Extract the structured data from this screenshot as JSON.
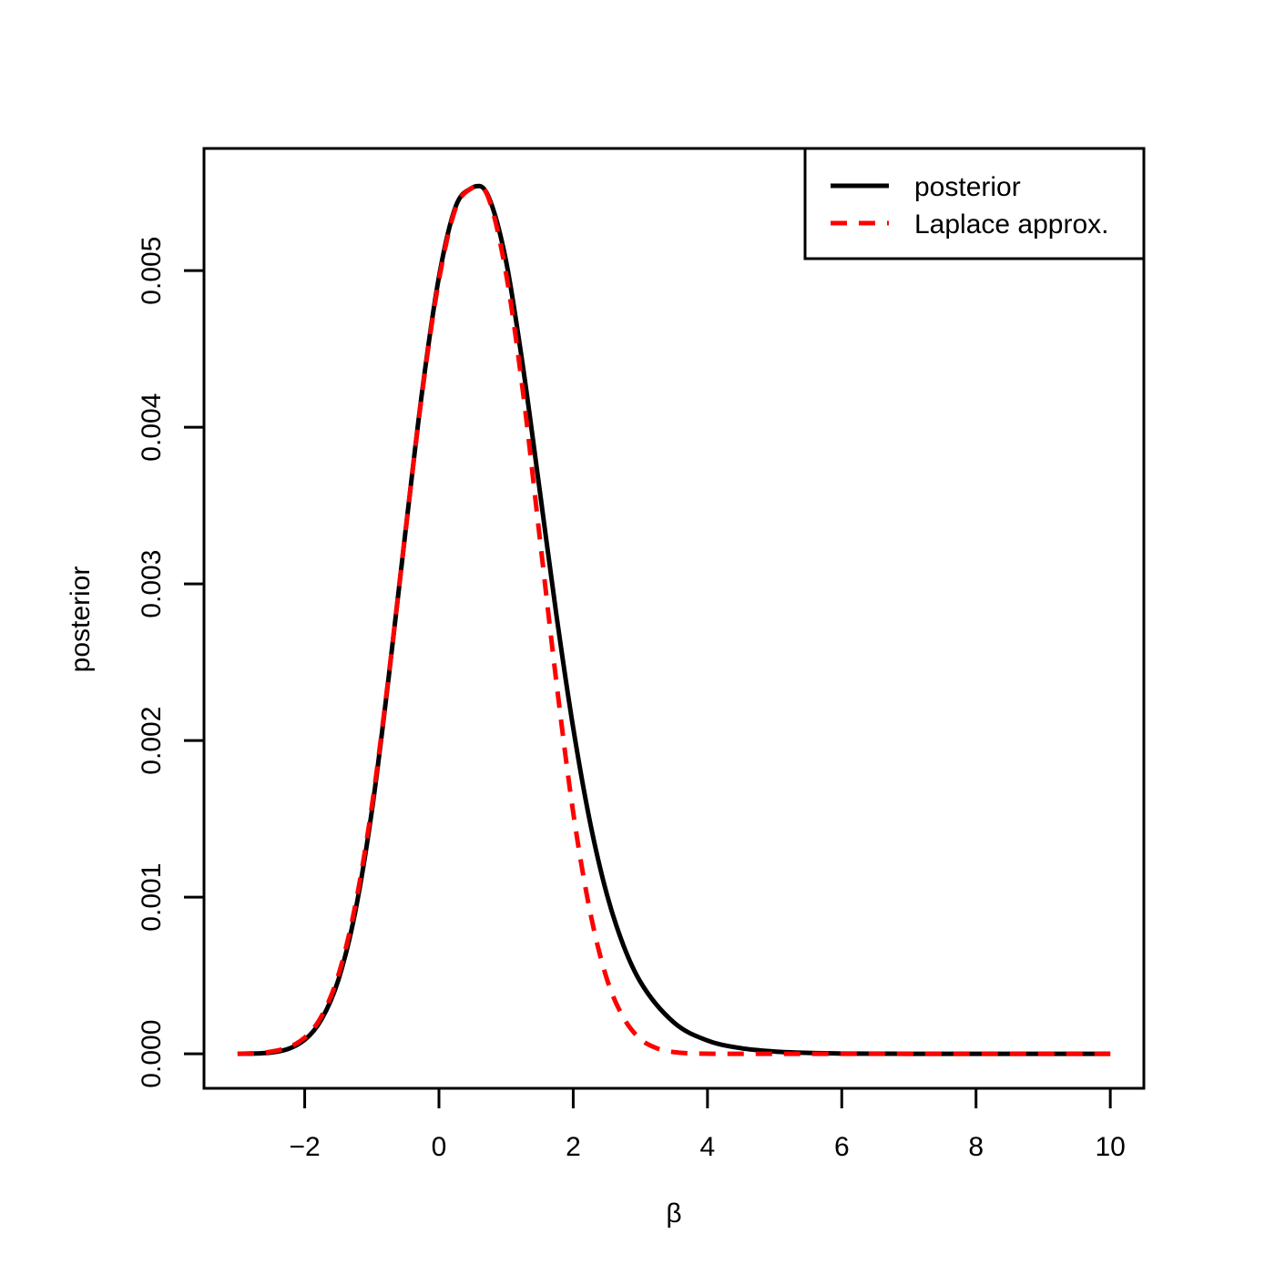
{
  "chart_data": {
    "type": "line",
    "xlabel": "β",
    "ylabel": "posterior",
    "xlim": [
      -3.5,
      10.5
    ],
    "ylim": [
      -0.00022,
      0.00578
    ],
    "x_ticks": [
      -2,
      0,
      2,
      4,
      6,
      8,
      10
    ],
    "x_tick_labels": [
      "−2",
      "0",
      "2",
      "4",
      "6",
      "8",
      "10"
    ],
    "y_ticks": [
      0.0,
      0.001,
      0.002,
      0.003,
      0.004,
      0.005
    ],
    "y_tick_labels": [
      "0.000",
      "0.001",
      "0.002",
      "0.003",
      "0.004",
      "0.005"
    ],
    "grid": false,
    "legend_position": "top-right",
    "series": [
      {
        "name": "posterior",
        "color": "#000000",
        "dash": "solid",
        "x": [
          -3.0,
          -2.5,
          -2.0,
          -1.75,
          -1.5,
          -1.25,
          -1.0,
          -0.75,
          -0.5,
          -0.25,
          0.0,
          0.25,
          0.5,
          0.6,
          0.75,
          1.0,
          1.25,
          1.5,
          1.75,
          2.0,
          2.25,
          2.5,
          2.75,
          3.0,
          3.5,
          4.0,
          4.5,
          5.0,
          5.5,
          6.0,
          7.0,
          8.0,
          9.0,
          10.0
        ],
        "values": [
          0.0,
          8e-06,
          9e-05,
          0.00022,
          0.00047,
          0.0009,
          0.00155,
          0.0024,
          0.00333,
          0.00423,
          0.00496,
          0.00541,
          0.00553,
          0.00554,
          0.00546,
          0.00506,
          0.00439,
          0.0036,
          0.0028,
          0.00208,
          0.00148,
          0.00102,
          0.00069,
          0.00046,
          0.0002,
          8.5e-05,
          3.6e-05,
          1.5e-05,
          6e-06,
          2e-06,
          5e-07,
          0.0,
          0.0,
          0.0
        ]
      },
      {
        "name": "Laplace approx.",
        "color": "#ff0000",
        "dash": "dashed",
        "x": [
          -3.0,
          -2.5,
          -2.0,
          -1.75,
          -1.5,
          -1.25,
          -1.0,
          -0.75,
          -0.5,
          -0.25,
          0.0,
          0.25,
          0.5,
          0.6,
          0.75,
          1.0,
          1.25,
          1.5,
          1.75,
          2.0,
          2.25,
          2.5,
          2.75,
          3.0,
          3.25,
          3.5,
          4.0,
          4.5,
          5.0,
          6.0,
          7.0,
          8.0,
          9.0,
          10.0
        ],
        "values": [
          1e-06,
          1.4e-05,
          0.000103,
          0.00024,
          0.0005,
          0.00094,
          0.00158,
          0.00241,
          0.00333,
          0.00422,
          0.00494,
          0.0054,
          0.00553,
          0.00554,
          0.00545,
          0.00498,
          0.00423,
          0.0033,
          0.00237,
          0.00154,
          0.00091,
          0.00048,
          0.00023,
          9.5e-05,
          3.5e-05,
          1.1e-05,
          1e-06,
          0.0,
          0.0,
          0.0,
          0.0,
          0.0,
          0.0,
          0.0
        ]
      }
    ]
  }
}
